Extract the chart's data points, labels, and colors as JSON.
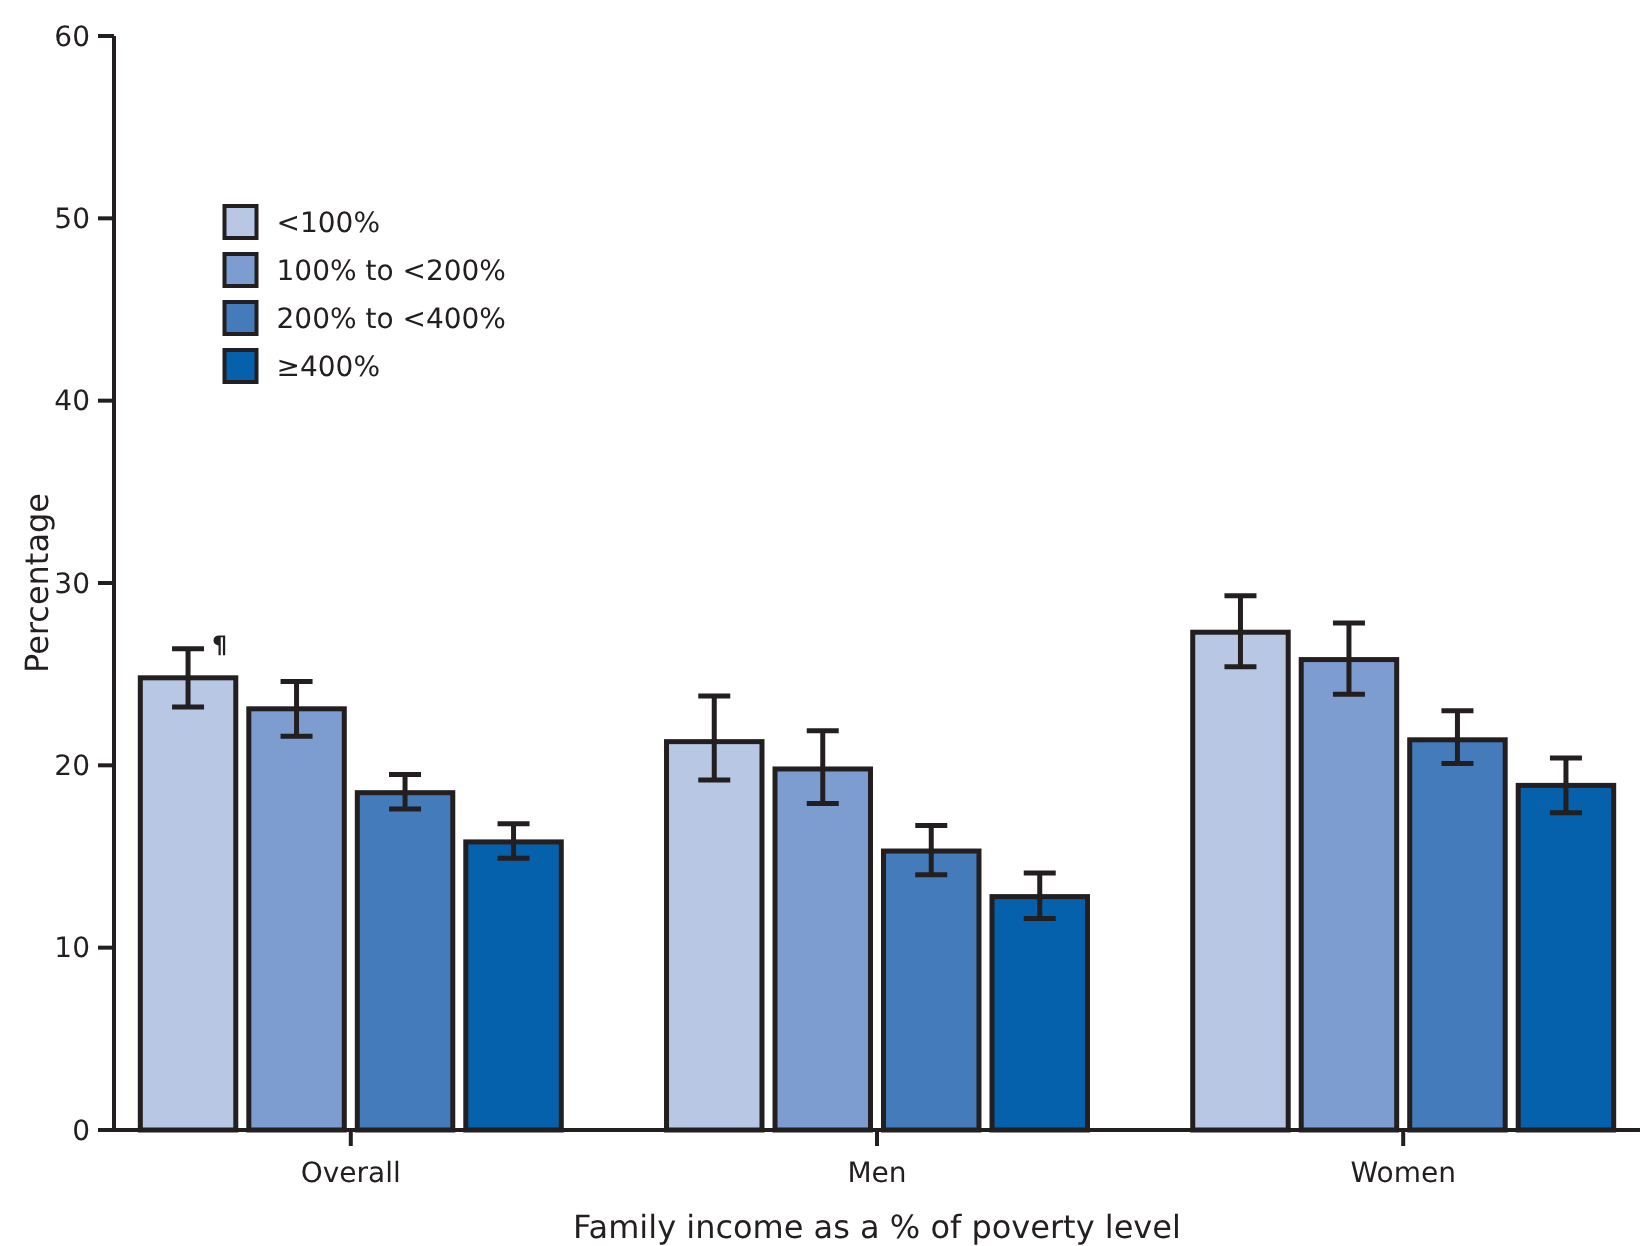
{
  "chart_data": {
    "type": "bar",
    "xlabel": "Family income as a % of poverty level",
    "ylabel": "Percentage",
    "categories": [
      "Overall",
      "Men",
      "Women"
    ],
    "series": [
      {
        "name": "<100%",
        "color": "#b8c7e4",
        "values": [
          24.8,
          21.3,
          27.3
        ],
        "errors": [
          [
            23.2,
            26.4
          ],
          [
            19.2,
            23.8
          ],
          [
            25.4,
            29.3
          ]
        ]
      },
      {
        "name": "100% to <200%",
        "color": "#7d9dd0",
        "values": [
          23.1,
          19.8,
          25.8
        ],
        "errors": [
          [
            21.6,
            24.6
          ],
          [
            17.9,
            21.9
          ],
          [
            23.9,
            27.8
          ]
        ]
      },
      {
        "name": "200% to <400%",
        "color": "#437bbb",
        "values": [
          18.5,
          15.3,
          21.4
        ],
        "errors": [
          [
            17.6,
            19.5
          ],
          [
            14.0,
            16.7
          ],
          [
            20.1,
            23.0
          ]
        ]
      },
      {
        "name": "≥400%",
        "color": "#0561ab",
        "values": [
          15.8,
          12.8,
          18.9
        ],
        "errors": [
          [
            14.9,
            16.8
          ],
          [
            11.6,
            14.1
          ],
          [
            17.4,
            20.4
          ]
        ]
      }
    ],
    "annotations": [
      "¶"
    ],
    "ylim": [
      0,
      60
    ],
    "yticks": [
      0,
      10,
      20,
      30,
      40,
      50,
      60
    ],
    "grid": false,
    "legend": "top left"
  }
}
